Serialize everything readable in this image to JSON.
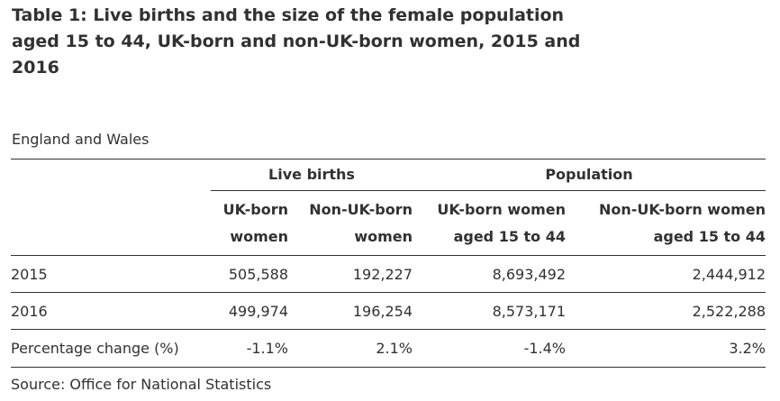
{
  "title": "Table 1: Live births and the size of the female population aged 15 to 44, UK-born and non-UK-born women, 2015 and 2016",
  "geography": "England and Wales",
  "column_groups": [
    {
      "label": "Live births"
    },
    {
      "label": "Population"
    }
  ],
  "columns": [
    {
      "line1": "UK-born",
      "line2": "women"
    },
    {
      "line1": "Non-UK-born",
      "line2": "women"
    },
    {
      "line1": "UK-born women",
      "line2": "aged 15 to 44"
    },
    {
      "line1": "Non-UK-born women",
      "line2": "aged 15 to 44"
    }
  ],
  "rows": [
    {
      "label": "2015",
      "values": [
        "505,588",
        "192,227",
        "8,693,492",
        "2,444,912"
      ]
    },
    {
      "label": "2016",
      "values": [
        "499,974",
        "196,254",
        "8,573,171",
        "2,522,288"
      ]
    },
    {
      "label": "Percentage change (%)",
      "values": [
        "-1.1%",
        "2.1%",
        "-1.4%",
        "3.2%"
      ]
    }
  ],
  "source": "Source: Office for National Statistics"
}
